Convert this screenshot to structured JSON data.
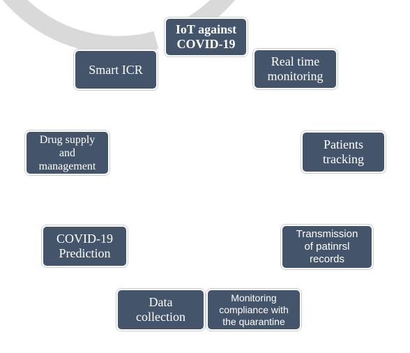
{
  "colors": {
    "node_fill": "#44546a",
    "node_text": "#ffffff",
    "ring": "#d9d9d9"
  },
  "cycle": {
    "center": "IoT against\nCOVID-19",
    "nodes": [
      {
        "id": "iot",
        "label": "IoT against\nCOVID-19"
      },
      {
        "id": "real-time-monitoring",
        "label": "Real time\nmonitoring"
      },
      {
        "id": "patients-tracking",
        "label": "Patients\ntracking"
      },
      {
        "id": "transmission",
        "label": "Transmission\nof patinrsl\nrecords"
      },
      {
        "id": "monitoring-compliance",
        "label": "Monitoring\ncompliance with\nthe quarantine"
      },
      {
        "id": "data-collection",
        "label": "Data\ncollection"
      },
      {
        "id": "covid-prediction",
        "label": "COVID-19\nPrediction"
      },
      {
        "id": "drug-supply",
        "label": "Drug supply\nand\nmanagement"
      },
      {
        "id": "smart-icr",
        "label": "Smart ICR"
      }
    ]
  }
}
